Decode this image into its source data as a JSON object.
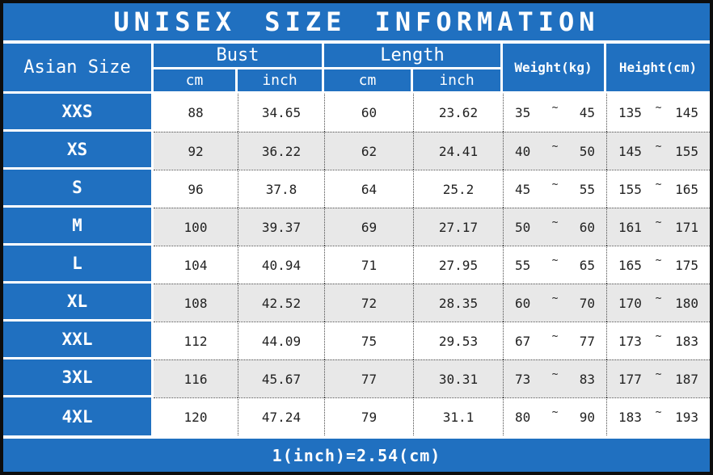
{
  "title": "UNISEX SIZE INFORMATION",
  "colors": {
    "accent_blue": "#2070c0",
    "alt_row_gray": "#e8e8e8",
    "frame_black": "#0d0d0d",
    "header_text": "#ffffff",
    "data_text": "#222222"
  },
  "header": {
    "asian_size": "Asian Size",
    "bust_group": "Bust",
    "length_group": "Length",
    "weight": "Weight(kg)",
    "height": "Height(cm)",
    "bust_cm": "cm",
    "bust_inch": "inch",
    "length_cm": "cm",
    "length_inch": "inch"
  },
  "range_separator": "~",
  "rows": [
    {
      "size": "XXS",
      "bust_cm": "88",
      "bust_inch": "34.65",
      "length_cm": "60",
      "length_inch": "23.62",
      "weight": [
        "35",
        "45"
      ],
      "height": [
        "135",
        "145"
      ]
    },
    {
      "size": "XS",
      "bust_cm": "92",
      "bust_inch": "36.22",
      "length_cm": "62",
      "length_inch": "24.41",
      "weight": [
        "40",
        "50"
      ],
      "height": [
        "145",
        "155"
      ]
    },
    {
      "size": "S",
      "bust_cm": "96",
      "bust_inch": "37.8",
      "length_cm": "64",
      "length_inch": "25.2",
      "weight": [
        "45",
        "55"
      ],
      "height": [
        "155",
        "165"
      ]
    },
    {
      "size": "M",
      "bust_cm": "100",
      "bust_inch": "39.37",
      "length_cm": "69",
      "length_inch": "27.17",
      "weight": [
        "50",
        "60"
      ],
      "height": [
        "161",
        "171"
      ]
    },
    {
      "size": "L",
      "bust_cm": "104",
      "bust_inch": "40.94",
      "length_cm": "71",
      "length_inch": "27.95",
      "weight": [
        "55",
        "65"
      ],
      "height": [
        "165",
        "175"
      ]
    },
    {
      "size": "XL",
      "bust_cm": "108",
      "bust_inch": "42.52",
      "length_cm": "72",
      "length_inch": "28.35",
      "weight": [
        "60",
        "70"
      ],
      "height": [
        "170",
        "180"
      ]
    },
    {
      "size": "XXL",
      "bust_cm": "112",
      "bust_inch": "44.09",
      "length_cm": "75",
      "length_inch": "29.53",
      "weight": [
        "67",
        "77"
      ],
      "height": [
        "173",
        "183"
      ]
    },
    {
      "size": "3XL",
      "bust_cm": "116",
      "bust_inch": "45.67",
      "length_cm": "77",
      "length_inch": "30.31",
      "weight": [
        "73",
        "83"
      ],
      "height": [
        "177",
        "187"
      ]
    },
    {
      "size": "4XL",
      "bust_cm": "120",
      "bust_inch": "47.24",
      "length_cm": "79",
      "length_inch": "31.1",
      "weight": [
        "80",
        "90"
      ],
      "height": [
        "183",
        "193"
      ]
    }
  ],
  "footer": "1(inch)=2.54(cm)"
}
